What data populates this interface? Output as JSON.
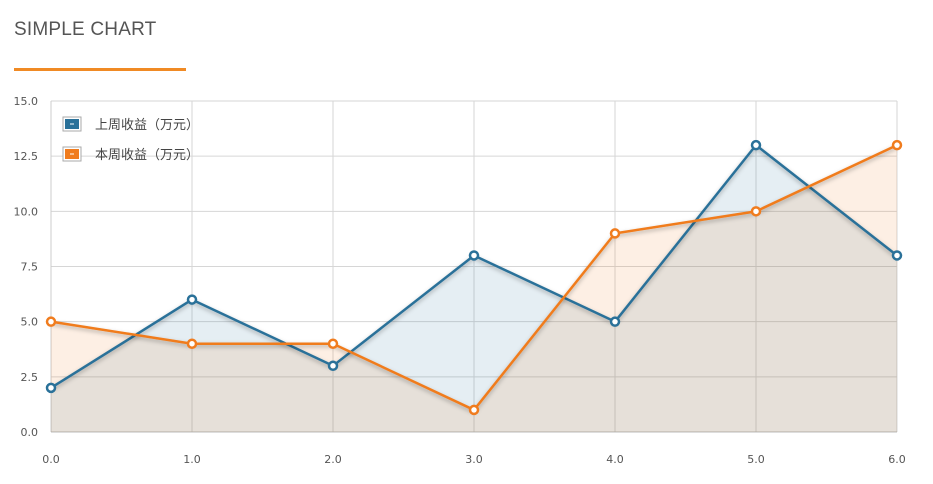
{
  "header": {
    "title": "SIMPLE CHART"
  },
  "chart_data": {
    "type": "area",
    "title": "SIMPLE CHART",
    "xlabel": "",
    "ylabel": "",
    "x": [
      0,
      1,
      2,
      3,
      4,
      5,
      6
    ],
    "x_tick_labels": [
      "0.0",
      "1.0",
      "2.0",
      "3.0",
      "4.0",
      "5.0",
      "6.0"
    ],
    "y_tick_labels": [
      "0.0",
      "2.5",
      "5.0",
      "7.5",
      "10.0",
      "12.5",
      "15.0"
    ],
    "xlim": [
      0,
      6
    ],
    "ylim": [
      0,
      15
    ],
    "grid": true,
    "legend_position": "top-left",
    "series": [
      {
        "name": "上周收益（万元）",
        "color": "#2a7199",
        "values": [
          2,
          6,
          3,
          8,
          5,
          13,
          8
        ]
      },
      {
        "name": "本周收益（万元）",
        "color": "#f07c1e",
        "values": [
          5,
          4,
          4,
          1,
          9,
          10,
          13
        ]
      }
    ]
  }
}
